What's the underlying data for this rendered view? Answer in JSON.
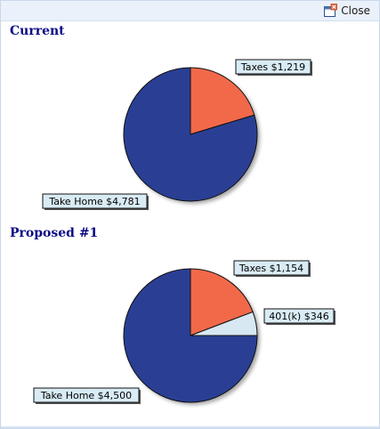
{
  "toolbar": {
    "close_label": "Close",
    "close_icon": "close-window-icon"
  },
  "sections": [
    {
      "title": "Current",
      "chart_data": {
        "type": "pie",
        "slices": [
          {
            "label": "Taxes $1,219",
            "value": 1219,
            "color": "#f2694a"
          },
          {
            "label": "Take Home $4,781",
            "value": 4781,
            "color": "#2a3f94"
          }
        ]
      }
    },
    {
      "title": "Proposed #1",
      "chart_data": {
        "type": "pie",
        "slices": [
          {
            "label": "Taxes $1,154",
            "value": 1154,
            "color": "#f2694a"
          },
          {
            "label": "401(k) $346",
            "value": 346,
            "color": "#d7e8f2"
          },
          {
            "label": "Take Home $4,500",
            "value": 4500,
            "color": "#2a3f94"
          }
        ]
      }
    }
  ],
  "colors": {
    "title": "#0b0b86",
    "label_bg": "#d9ecf5",
    "topbar_bg": "#eaf1fb"
  }
}
